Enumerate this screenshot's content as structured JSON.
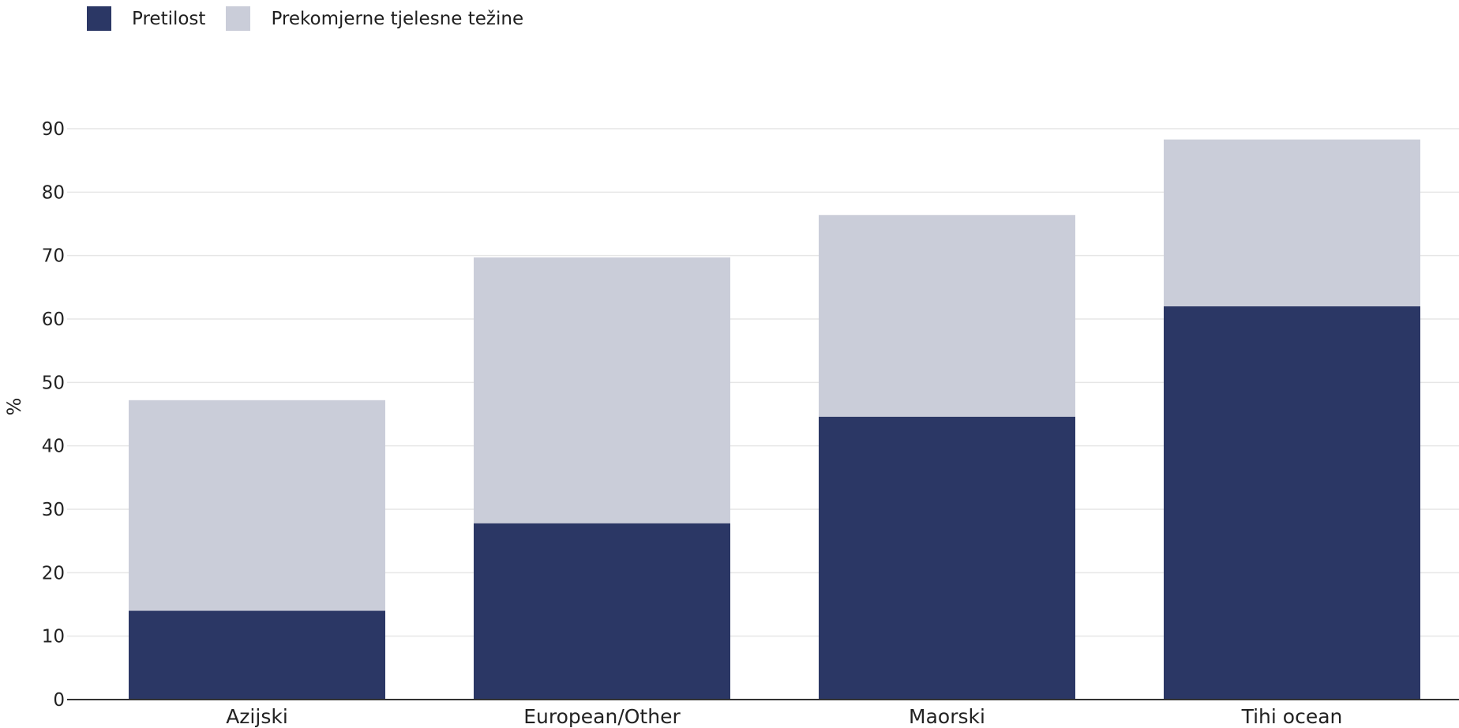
{
  "chart_data": {
    "type": "bar",
    "stacked": true,
    "categories": [
      "Azijski",
      "European/Other",
      "Maorski",
      "Tihi ocean"
    ],
    "series": [
      {
        "name": "Pretilost",
        "color": "#2b3765",
        "values": [
          14.0,
          27.8,
          44.6,
          62.0
        ]
      },
      {
        "name": "Prekomjerne tjelesne težine",
        "color": "#cacdd9",
        "values": [
          33.2,
          41.9,
          31.8,
          26.3
        ]
      }
    ],
    "ylabel": "%",
    "xlabel": "",
    "ylim": [
      0,
      90
    ],
    "yticks": [
      0,
      10,
      20,
      30,
      40,
      50,
      60,
      70,
      80,
      90
    ],
    "grid": true,
    "legend_position": "top-left"
  }
}
